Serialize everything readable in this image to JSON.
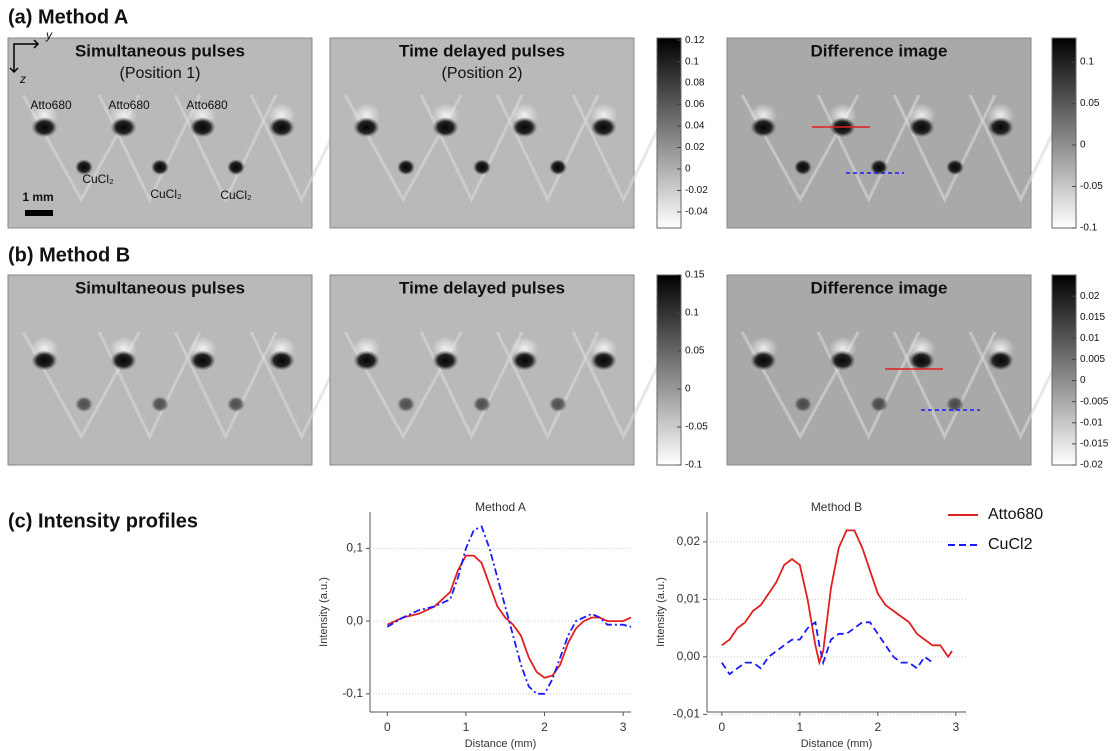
{
  "figure": {
    "panel_a": {
      "label": "(a) Method A",
      "images": [
        {
          "title": "Simultaneous pulses",
          "subtitle": "(Position 1)"
        },
        {
          "title": "Time delayed pulses",
          "subtitle": "(Position 2)"
        },
        {
          "title": "Difference image"
        }
      ],
      "annotations": {
        "dyes": [
          "Atto680",
          "Atto680",
          "Atto680"
        ],
        "salts": [
          "CuCl₂",
          "CuCl₂",
          "CuCl₂"
        ],
        "scale_bar": "1 mm",
        "axis_y": "y",
        "axis_z": "z"
      }
    },
    "panel_b": {
      "label": "(b) Method B",
      "images": [
        {
          "title": "Simultaneous pulses"
        },
        {
          "title": "Time delayed pulses"
        },
        {
          "title": "Difference image"
        }
      ]
    },
    "panel_c": {
      "label": "(c) Intensity profiles"
    },
    "colorbars": [
      {
        "lim": [
          -0.055,
          0.122
        ],
        "ticks": [
          0.12,
          0.1,
          0.08,
          0.06,
          0.04,
          0.02,
          0,
          -0.02,
          -0.04
        ]
      },
      {
        "lim": [
          -0.1,
          0.129
        ],
        "ticks": [
          0.1,
          0.05,
          0,
          -0.05,
          -0.1
        ]
      },
      {
        "lim": [
          -0.1,
          0.15
        ],
        "ticks": [
          0.15,
          0.1,
          0.05,
          0,
          -0.05,
          -0.1
        ]
      },
      {
        "lim": [
          -0.02,
          0.025
        ],
        "ticks": [
          0.02,
          0.015,
          0.01,
          0.005,
          0,
          -0.005,
          -0.01,
          -0.015,
          -0.02
        ]
      }
    ]
  },
  "chart_data": [
    {
      "type": "line",
      "title": "Method A",
      "x_label": "Distance (mm)",
      "y_label": "Intensity (a.u.)",
      "x": [
        0,
        0.2,
        0.4,
        0.6,
        0.8,
        0.9,
        1.0,
        1.1,
        1.2,
        1.3,
        1.4,
        1.5,
        1.6,
        1.7,
        1.8,
        1.9,
        2.0,
        2.1,
        2.2,
        2.3,
        2.4,
        2.5,
        2.6,
        2.7,
        2.8,
        2.9,
        3.0,
        3.1
      ],
      "series": [
        {
          "name": "Atto680",
          "color": "#e02020",
          "dash": "solid",
          "values": [
            -0.005,
            0.005,
            0.01,
            0.02,
            0.04,
            0.07,
            0.09,
            0.09,
            0.08,
            0.05,
            0.02,
            0.005,
            -0.005,
            -0.02,
            -0.05,
            -0.07,
            -0.078,
            -0.075,
            -0.06,
            -0.03,
            -0.01,
            0.0,
            0.005,
            0.005,
            0.0,
            0.0,
            0.0,
            0.005
          ]
        },
        {
          "name": "CuCl2",
          "color": "#1a1aff",
          "dash": "dashdot",
          "values": [
            -0.008,
            0.005,
            0.015,
            0.02,
            0.03,
            0.06,
            0.1,
            0.125,
            0.13,
            0.1,
            0.06,
            0.02,
            -0.02,
            -0.06,
            -0.09,
            -0.1,
            -0.1,
            -0.08,
            -0.05,
            -0.02,
            0.0,
            0.005,
            0.01,
            0.005,
            -0.005,
            -0.005,
            -0.005,
            -0.008
          ]
        }
      ],
      "xlim": [
        -0.22,
        3.1
      ],
      "xticks": [
        0,
        1,
        2,
        3
      ],
      "ylim": [
        -0.125,
        0.15
      ],
      "yticks": [
        {
          "value": 0.1,
          "label": "0,1"
        },
        {
          "value": 0,
          "label": "0,0"
        },
        {
          "value": -0.1,
          "label": "-0,1"
        }
      ],
      "grid": true
    },
    {
      "type": "line",
      "title": "Method B",
      "x_label": "Distance (mm)",
      "y_label": "Intensity (a.u.)",
      "x": [
        0,
        0.1,
        0.2,
        0.3,
        0.4,
        0.5,
        0.6,
        0.7,
        0.8,
        0.9,
        1.0,
        1.1,
        1.2,
        1.25,
        1.3,
        1.4,
        1.5,
        1.6,
        1.7,
        1.8,
        1.9,
        2.0,
        2.1,
        2.2,
        2.3,
        2.4,
        2.5,
        2.6,
        2.7,
        2.8,
        2.9,
        2.95
      ],
      "series": [
        {
          "name": "Atto680",
          "color": "#e02020",
          "dash": "solid",
          "values": [
            0.002,
            0.003,
            0.005,
            0.006,
            0.008,
            0.009,
            0.011,
            0.013,
            0.016,
            0.017,
            0.016,
            0.01,
            0.002,
            -0.001,
            0.001,
            0.012,
            0.019,
            0.022,
            0.022,
            0.019,
            0.015,
            0.011,
            0.009,
            0.008,
            0.007,
            0.006,
            0.004,
            0.003,
            0.002,
            0.002,
            0.0,
            0.001
          ]
        },
        {
          "name": "CuCl2",
          "color": "#1a1aff",
          "dash": "dashed",
          "values": [
            -0.001,
            -0.003,
            -0.002,
            -0.001,
            -0.001,
            -0.002,
            0.0,
            0.001,
            0.002,
            0.003,
            0.003,
            0.005,
            0.006,
            0.002,
            -0.001,
            0.003,
            0.004,
            0.004,
            0.005,
            0.006,
            0.006,
            0.004,
            0.002,
            0.0,
            -0.001,
            -0.001,
            -0.002,
            0.0,
            -0.001,
            null,
            null,
            null
          ]
        }
      ],
      "xlim": [
        -0.19,
        3.13
      ],
      "xticks": [
        0,
        1,
        2,
        3
      ],
      "ylim": [
        -0.0096,
        0.0252
      ],
      "yticks": [
        {
          "value": 0.02,
          "label": "0,02"
        },
        {
          "value": 0.01,
          "label": "0,01"
        },
        {
          "value": 0,
          "label": "0,00"
        },
        {
          "value": -0.01,
          "label": "-0,01"
        }
      ],
      "grid": true,
      "legend": "right"
    }
  ]
}
